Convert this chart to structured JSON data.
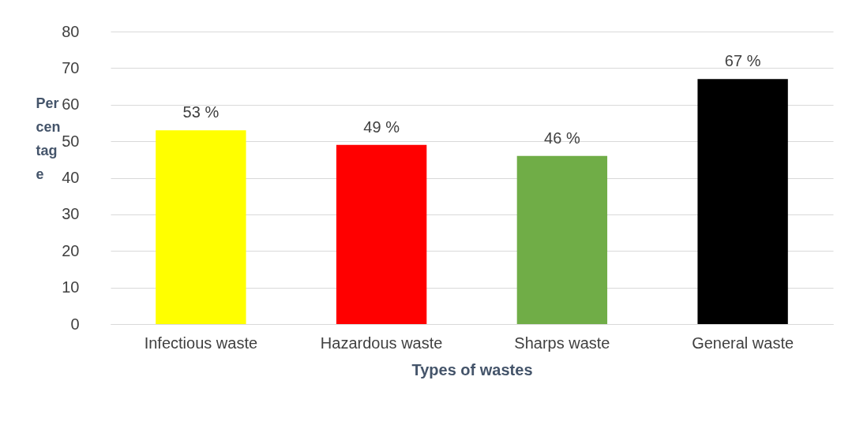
{
  "chart_data": {
    "type": "bar",
    "xlabel": "Types of wastes",
    "ylabel": "Percentage",
    "categories": [
      "Infectious waste",
      "Hazardous waste",
      "Sharps waste",
      "General waste"
    ],
    "values": [
      53,
      49,
      46,
      67
    ],
    "colors": [
      "#ffff00",
      "#ff0000",
      "#70ad47",
      "#000000"
    ],
    "value_labels": [
      "53 %",
      "49 %",
      "46 %",
      "67 %"
    ],
    "ylim": [
      0,
      80
    ],
    "yticks": [
      0,
      10,
      20,
      30,
      40,
      50,
      60,
      70,
      80
    ],
    "grid": "y"
  }
}
